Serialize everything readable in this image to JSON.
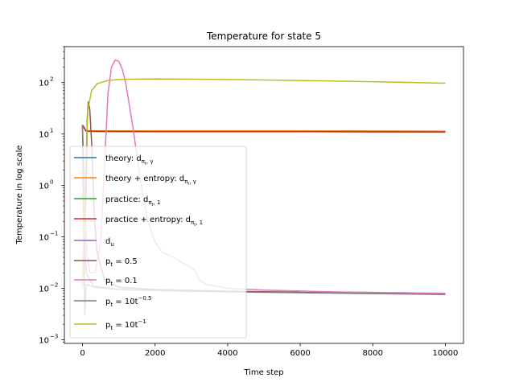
{
  "chart_data": {
    "type": "line",
    "title": "Temperature for state 5",
    "xlabel": "Time step",
    "ylabel": "Temperature in log scale",
    "xlim": [
      -500,
      10500
    ],
    "ylim": [
      0.00085,
      500
    ],
    "yscale": "log",
    "grid": false,
    "legend_position": "lower-left",
    "x_ticks": [
      0,
      2000,
      4000,
      6000,
      8000,
      10000
    ],
    "x_tick_labels": [
      "0",
      "2000",
      "4000",
      "6000",
      "8000",
      "10000"
    ],
    "y_ticks": [
      0.001,
      0.01,
      0.1,
      1,
      10,
      100
    ],
    "y_tick_labels": [
      "10",
      "10",
      "10",
      "10",
      "10",
      "10"
    ],
    "y_tick_exponents": [
      "−3",
      "−2",
      "−1",
      "0",
      "1",
      "2"
    ],
    "series": [
      {
        "name": "theory: d",
        "name_sub": "π",
        "name_sub2": "t",
        "name_sub3": ", γ",
        "color": "#1f77b4",
        "points": [
          [
            0,
            15
          ],
          [
            100,
            11.5
          ],
          [
            500,
            11.5
          ],
          [
            2000,
            11.5
          ],
          [
            6000,
            11.5
          ],
          [
            10000,
            11.3
          ]
        ]
      },
      {
        "name": "theory + entropy: d",
        "name_sub": "π",
        "name_sub2": "t",
        "name_sub3": ", γ",
        "color": "#ff7f0e",
        "points": [
          [
            0,
            15
          ],
          [
            100,
            11.5
          ],
          [
            500,
            11.5
          ],
          [
            2000,
            11.5
          ],
          [
            6000,
            11.5
          ],
          [
            10000,
            11.3
          ]
        ]
      },
      {
        "name": "practice: d",
        "name_sub": "π",
        "name_sub2": "t",
        "name_sub3": ", 1",
        "color": "#2ca02c",
        "points": [
          [
            0,
            15
          ],
          [
            100,
            11.3
          ],
          [
            500,
            11.2
          ],
          [
            2000,
            11.1
          ],
          [
            6000,
            11.1
          ],
          [
            10000,
            11.0
          ]
        ]
      },
      {
        "name": "practice + entropy: d",
        "name_sub": "π",
        "name_sub2": "t",
        "name_sub3": ", 1",
        "color": "#d62728",
        "points": [
          [
            0,
            15
          ],
          [
            100,
            11.3
          ],
          [
            500,
            11.2
          ],
          [
            2000,
            11.1
          ],
          [
            6000,
            11.1
          ],
          [
            10000,
            11.0
          ]
        ]
      },
      {
        "name": "d",
        "name_sub": "u",
        "name_sub2": "",
        "name_sub3": "",
        "color": "#9467bd",
        "points": [
          [
            0,
            15
          ],
          [
            50,
            0.1
          ],
          [
            100,
            0.02
          ],
          [
            300,
            0.011
          ],
          [
            1000,
            0.0095
          ],
          [
            3000,
            0.0088
          ],
          [
            6000,
            0.0083
          ],
          [
            10000,
            0.0078
          ]
        ]
      },
      {
        "name": "p",
        "name_sub": "t",
        "name_sub2": "",
        "name_sub3": " = 0.5",
        "color": "#8c564b",
        "points": [
          [
            0,
            15
          ],
          [
            40,
            1
          ],
          [
            70,
            0.2
          ],
          [
            100,
            1
          ],
          [
            130,
            20
          ],
          [
            160,
            42
          ],
          [
            200,
            30
          ],
          [
            260,
            5
          ],
          [
            320,
            0.3
          ],
          [
            400,
            0.05
          ],
          [
            600,
            0.015
          ],
          [
            1000,
            0.0105
          ],
          [
            2000,
            0.0095
          ],
          [
            4000,
            0.0088
          ],
          [
            7000,
            0.0082
          ],
          [
            10000,
            0.0078
          ]
        ]
      },
      {
        "name": "p",
        "name_sub": "t",
        "name_sub2": "",
        "name_sub3": " = 0.1",
        "color": "#e377c2",
        "points": [
          [
            0,
            15
          ],
          [
            60,
            0.5
          ],
          [
            120,
            0.05
          ],
          [
            200,
            0.02
          ],
          [
            350,
            0.02
          ],
          [
            500,
            0.08
          ],
          [
            600,
            2
          ],
          [
            700,
            60
          ],
          [
            800,
            200
          ],
          [
            900,
            275
          ],
          [
            1000,
            260
          ],
          [
            1100,
            180
          ],
          [
            1200,
            90
          ],
          [
            1400,
            12
          ],
          [
            1600,
            1.2
          ],
          [
            1800,
            0.2
          ],
          [
            2000,
            0.08
          ],
          [
            2200,
            0.05
          ],
          [
            2500,
            0.04
          ],
          [
            2800,
            0.03
          ],
          [
            3000,
            0.025
          ],
          [
            3100,
            0.022
          ],
          [
            3150,
            0.018
          ],
          [
            3200,
            0.015
          ],
          [
            3400,
            0.012
          ],
          [
            4000,
            0.01
          ],
          [
            5000,
            0.0092
          ],
          [
            7000,
            0.0085
          ],
          [
            10000,
            0.008
          ]
        ]
      },
      {
        "name": "p",
        "name_sub": "t",
        "name_sub2": "",
        "name_sub3": " = 10t",
        "name_sup": "−0.5",
        "color": "#7f7f7f",
        "points": [
          [
            0,
            15
          ],
          [
            30,
            0.1
          ],
          [
            60,
            0.003
          ],
          [
            100,
            0.012
          ],
          [
            300,
            0.0105
          ],
          [
            1000,
            0.0095
          ],
          [
            3000,
            0.0087
          ],
          [
            6000,
            0.0082
          ],
          [
            10000,
            0.0076
          ]
        ]
      },
      {
        "name": "p",
        "name_sub": "t",
        "name_sub2": "",
        "name_sub3": " = 10t",
        "name_sup": "−1",
        "color": "#bcbd22",
        "points": [
          [
            0,
            0.01
          ],
          [
            50,
            0.5
          ],
          [
            100,
            5
          ],
          [
            150,
            30
          ],
          [
            250,
            70
          ],
          [
            400,
            95
          ],
          [
            700,
            110
          ],
          [
            1000,
            115
          ],
          [
            2000,
            118
          ],
          [
            4000,
            115
          ],
          [
            6000,
            110
          ],
          [
            8000,
            104
          ],
          [
            10000,
            97
          ]
        ]
      }
    ]
  }
}
